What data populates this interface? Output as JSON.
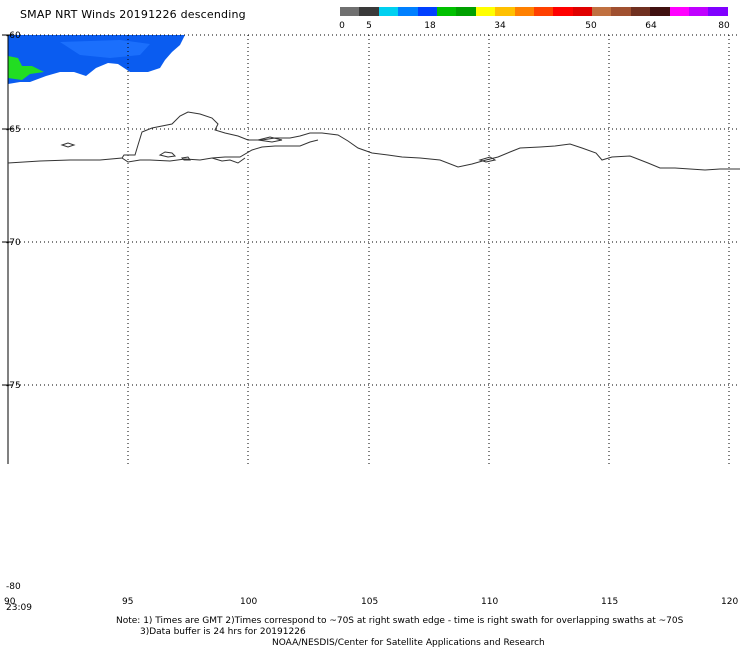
{
  "title": "SMAP NRT Winds  20191226 descending",
  "legend": {
    "ticks": [
      "0",
      "5",
      "18",
      "34",
      "50",
      "64",
      "80"
    ],
    "colors": [
      "#707070",
      "#3a3a3a",
      "#00d0f0",
      "#0080ff",
      "#0040ff",
      "#00c000",
      "#00a000",
      "#ffff00",
      "#ffc000",
      "#ff8000",
      "#ff4000",
      "#ff0000",
      "#e00000",
      "#c07040",
      "#a05030",
      "#703020",
      "#401010",
      "#ff00ff",
      "#c000ff",
      "#8000ff"
    ]
  },
  "map": {
    "lat_labels": [
      "-60",
      "-65",
      "-70",
      "-75",
      "-80"
    ],
    "lon_labels": [
      "90",
      "95",
      "100",
      "105",
      "110",
      "115",
      "120"
    ],
    "corner_time": "23:09"
  },
  "footer": {
    "line1": "Note: 1) Times are GMT 2)Times correspond to ~70S at right swath edge - time is right swath for overlapping swaths at ~70S",
    "line2": "3)Data buffer is 24 hrs for 20191226",
    "line3": "NOAA/NESDIS/Center for Satellite Applications and Research"
  }
}
